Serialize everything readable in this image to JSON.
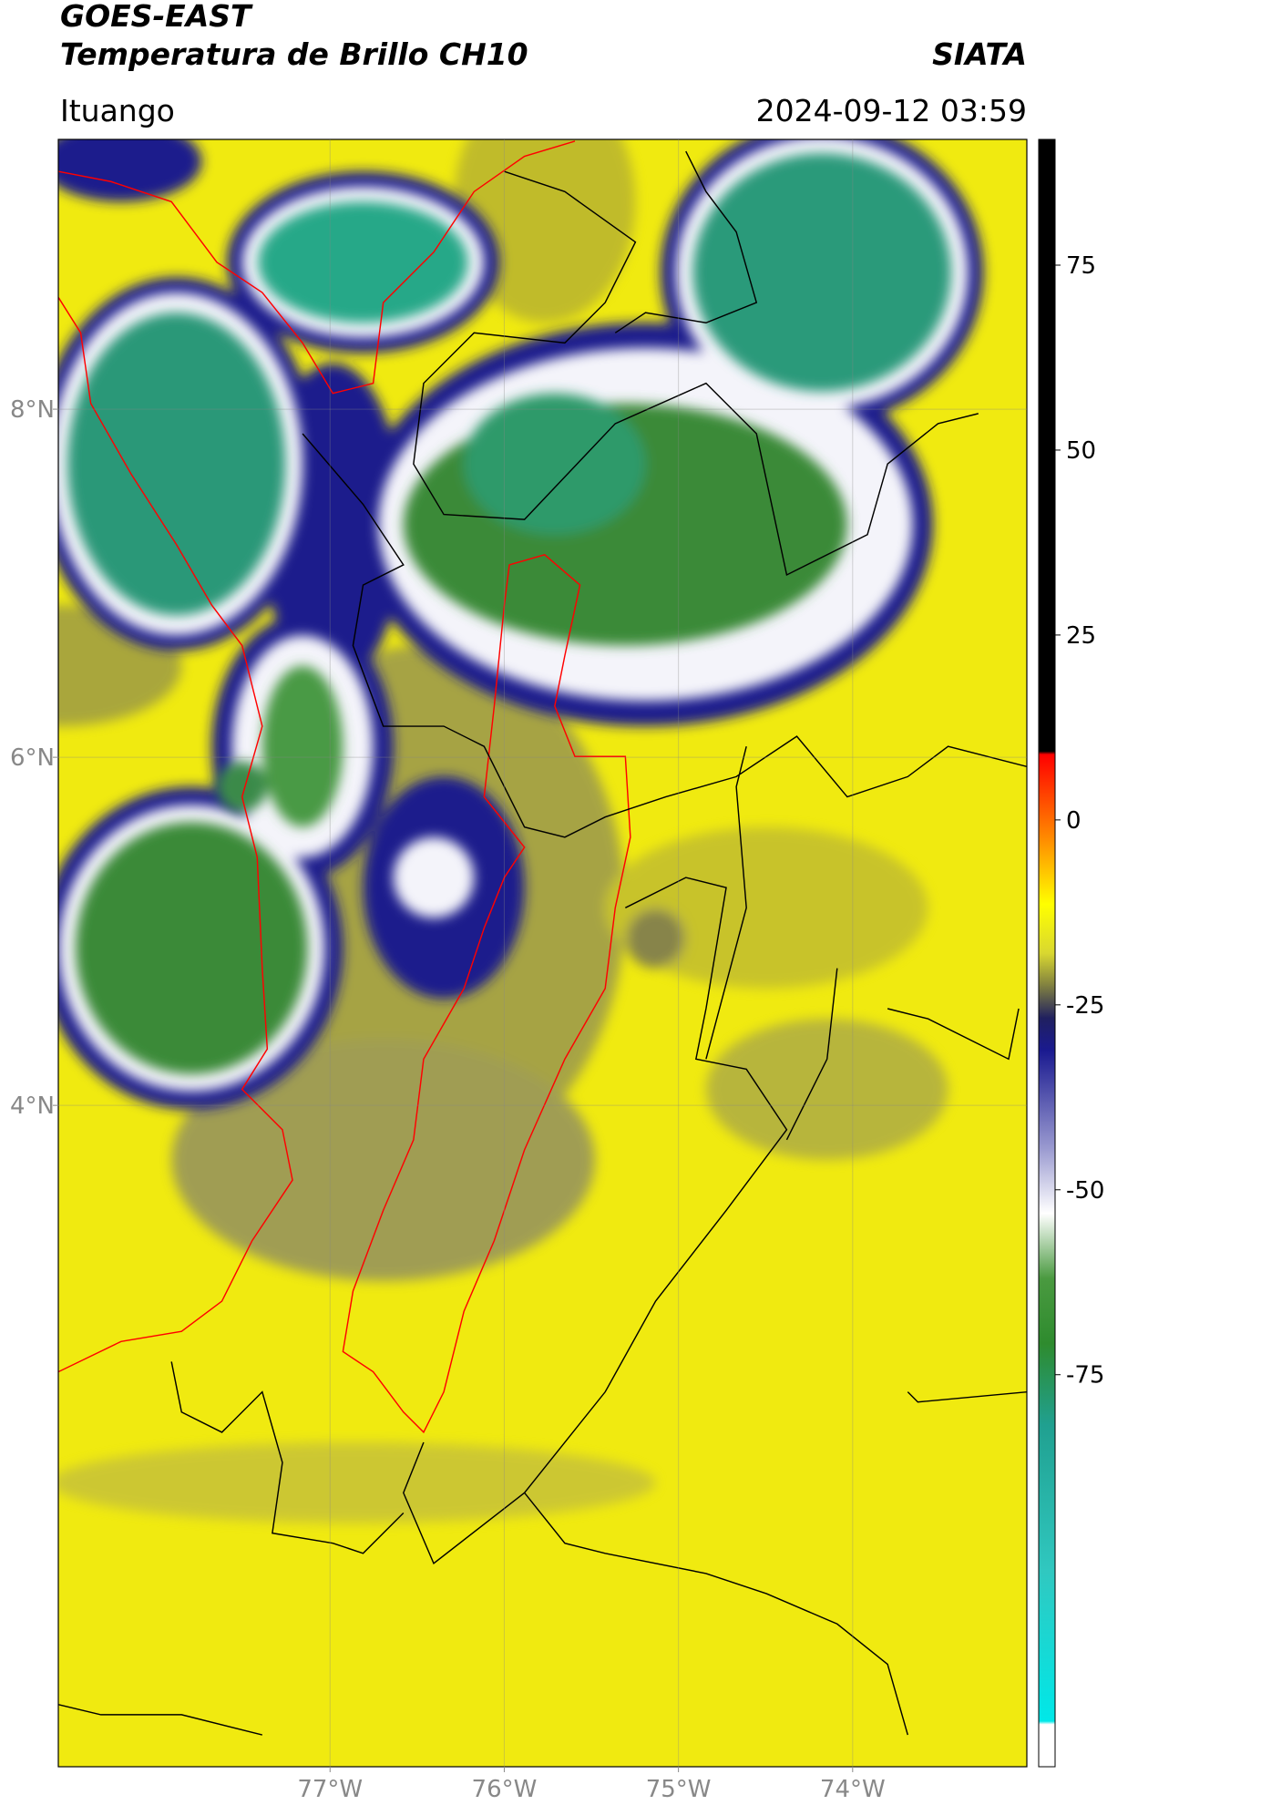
{
  "header": {
    "title": "GOES-EAST",
    "subtitle": "Temperatura de Brillo CH10",
    "organization": "SIATA",
    "location": "Ituango",
    "timestamp": "2024-09-12 03:59"
  },
  "map": {
    "xlim": [
      -78.56,
      -73.0
    ],
    "ylim": [
      0.2,
      9.55
    ],
    "xticks": [
      {
        "value": -77,
        "label": "77°W"
      },
      {
        "value": -76,
        "label": "76°W"
      },
      {
        "value": -75,
        "label": "75°W"
      },
      {
        "value": -74,
        "label": "74°W"
      }
    ],
    "yticks": [
      {
        "value": 4,
        "label": "4°N"
      },
      {
        "value": 6,
        "label": "6°N"
      },
      {
        "value": 8,
        "label": "8°N"
      }
    ],
    "grid": true
  },
  "colorbar": {
    "lim": [
      -128,
      92
    ],
    "ticks": [
      -75,
      -50,
      -25,
      0,
      25,
      50,
      75
    ]
  }
}
